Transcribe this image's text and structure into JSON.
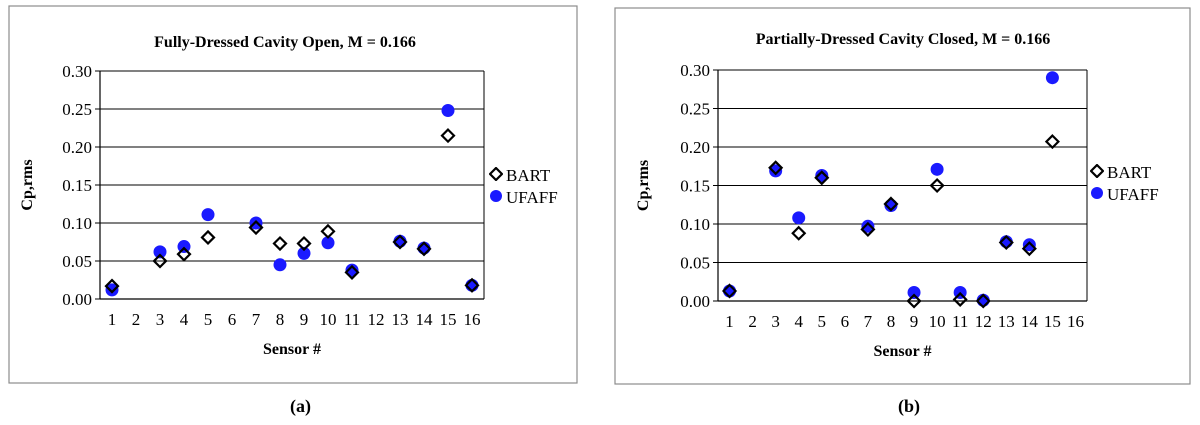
{
  "captions": [
    "(a)",
    "(b)"
  ],
  "colors": {
    "bart": "#000000",
    "ufaff": "#1a1aff",
    "axis": "#000000",
    "grid": "#000000",
    "frame": "#8c8c8c"
  },
  "chart_data": [
    {
      "type": "scatter",
      "title": "Fully-Dressed Cavity Open, M = 0.166",
      "xlabel": "Sensor #",
      "ylabel": "Cp,rms",
      "xlim": [
        0.5,
        16.5
      ],
      "ylim": [
        0,
        0.3
      ],
      "x_ticks": [
        "1",
        "2",
        "3",
        "4",
        "5",
        "6",
        "7",
        "8",
        "9",
        "10",
        "11",
        "12",
        "13",
        "14",
        "15",
        "16"
      ],
      "y_ticks": [
        "0.00",
        "0.05",
        "0.10",
        "0.15",
        "0.20",
        "0.25",
        "0.30"
      ],
      "grid": "horizontal",
      "legend_position": "right",
      "series": [
        {
          "name": "BART",
          "marker": "diamond-open",
          "x": [
            1,
            3,
            4,
            5,
            7,
            8,
            9,
            10,
            11,
            13,
            14,
            15,
            16
          ],
          "y": [
            0.017,
            0.05,
            0.059,
            0.081,
            0.094,
            0.073,
            0.073,
            0.089,
            0.035,
            0.075,
            0.066,
            0.215,
            0.018
          ]
        },
        {
          "name": "UFAFF",
          "marker": "circle-filled",
          "x": [
            1,
            3,
            4,
            5,
            7,
            8,
            9,
            10,
            11,
            13,
            14,
            15,
            16
          ],
          "y": [
            0.012,
            0.062,
            0.069,
            0.111,
            0.1,
            0.045,
            0.06,
            0.074,
            0.038,
            0.076,
            0.067,
            0.248,
            0.018
          ]
        }
      ]
    },
    {
      "type": "scatter",
      "title": "Partially-Dressed Cavity Closed, M = 0.166",
      "xlabel": "Sensor #",
      "ylabel": "Cp,rms",
      "xlim": [
        0.5,
        16.5
      ],
      "ylim": [
        0,
        0.3
      ],
      "x_ticks": [
        "1",
        "2",
        "3",
        "4",
        "5",
        "6",
        "7",
        "8",
        "9",
        "10",
        "11",
        "12",
        "13",
        "14",
        "15",
        "16"
      ],
      "y_ticks": [
        "0.00",
        "0.05",
        "0.10",
        "0.15",
        "0.20",
        "0.25",
        "0.30"
      ],
      "grid": "horizontal",
      "legend_position": "right",
      "series": [
        {
          "name": "BART",
          "marker": "diamond-open",
          "x": [
            1,
            3,
            4,
            5,
            7,
            8,
            9,
            10,
            11,
            12,
            13,
            14,
            15
          ],
          "y": [
            0.013,
            0.173,
            0.088,
            0.16,
            0.093,
            0.126,
            0.0,
            0.15,
            0.002,
            0.0,
            0.076,
            0.068,
            0.207
          ]
        },
        {
          "name": "UFAFF",
          "marker": "circle-filled",
          "x": [
            1,
            3,
            4,
            5,
            7,
            8,
            9,
            10,
            11,
            12,
            13,
            14,
            15
          ],
          "y": [
            0.013,
            0.169,
            0.108,
            0.163,
            0.097,
            0.124,
            0.011,
            0.171,
            0.011,
            0.001,
            0.077,
            0.073,
            0.29
          ]
        }
      ]
    }
  ]
}
